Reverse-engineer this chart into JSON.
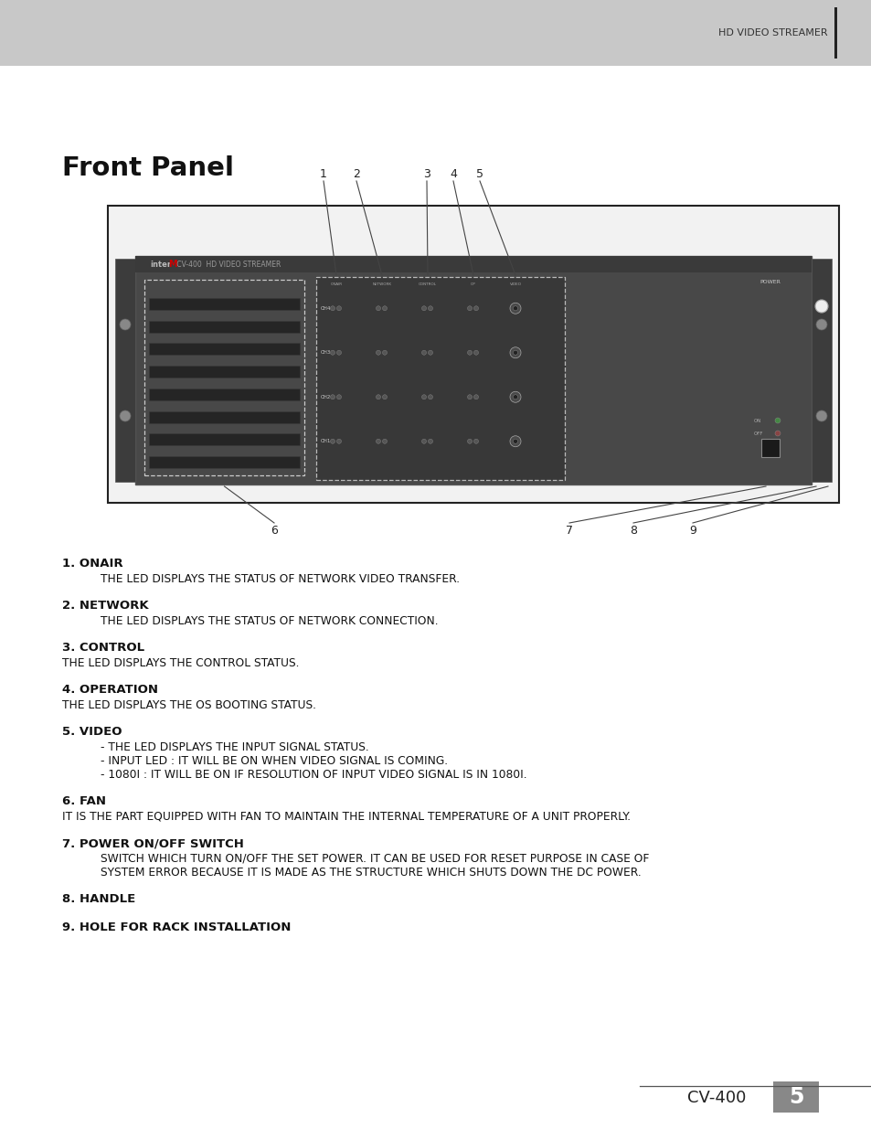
{
  "header_bg": "#c8c8c8",
  "header_text": "HD VIDEO STREAMER",
  "page_bg": "#ffffff",
  "title": "Front Panel",
  "items": [
    {
      "number": "1.",
      "label": "ONAIR",
      "description": "THE LED DISPLAYS THE STATUS OF NETWORK VIDEO TRANSFER.",
      "indent": true,
      "desc_no_indent": false
    },
    {
      "number": "2.",
      "label": "NETWORK",
      "description": "THE LED DISPLAYS THE STATUS OF NETWORK CONNECTION.",
      "indent": true,
      "desc_no_indent": false
    },
    {
      "number": "3.",
      "label": "CONTROL",
      "description": "THE LED DISPLAYS THE CONTROL STATUS.",
      "indent": false,
      "desc_no_indent": true
    },
    {
      "number": "4.",
      "label": "OPERATION",
      "description": "THE LED DISPLAYS THE OS BOOTING STATUS.",
      "indent": false,
      "desc_no_indent": true
    },
    {
      "number": "5.",
      "label": "VIDEO",
      "description": "- THE LED DISPLAYS THE INPUT SIGNAL STATUS.\n- INPUT LED : IT WILL BE ON WHEN VIDEO SIGNAL IS COMING.\n- 1080I : IT WILL BE ON IF RESOLUTION OF INPUT VIDEO SIGNAL IS IN 1080I.",
      "indent": true,
      "desc_no_indent": false
    },
    {
      "number": "6.",
      "label": "FAN",
      "description": "IT IS THE PART EQUIPPED WITH FAN TO MAINTAIN THE INTERNAL TEMPERATURE OF A UNIT PROPERLY.",
      "indent": false,
      "desc_no_indent": true
    },
    {
      "number": "7.",
      "label": "POWER ON/OFF SWITCH",
      "description": "SWITCH WHICH TURN ON/OFF THE SET POWER. IT CAN BE USED FOR RESET PURPOSE IN CASE OF\nSYSTEM ERROR BECAUSE IT IS MADE AS THE STRUCTURE WHICH SHUTS DOWN THE DC POWER.",
      "indent": true,
      "desc_no_indent": false
    },
    {
      "number": "8.",
      "label": "HANDLE",
      "description": "",
      "indent": false,
      "desc_no_indent": false
    },
    {
      "number": "9.",
      "label": "HOLE FOR RACK INSTALLATION",
      "description": "",
      "indent": false,
      "desc_no_indent": false
    }
  ],
  "footer_cv": "CV-400",
  "footer_page": "5"
}
